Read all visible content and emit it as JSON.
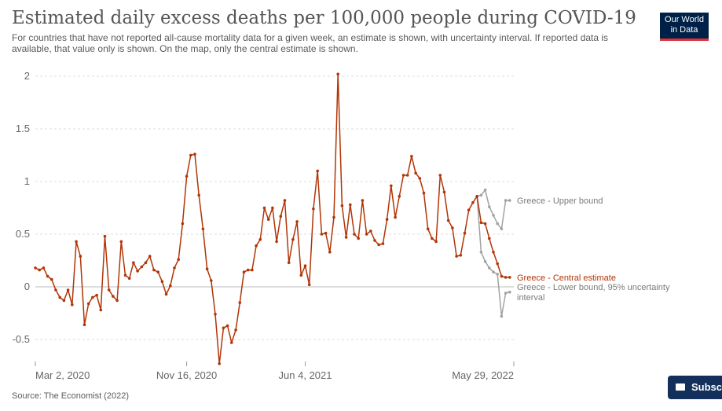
{
  "header": {
    "title": "Estimated daily excess deaths per 100,000 people during COVID-19",
    "subtitle": "For countries that have not reported all-cause mortality data for a given week, an estimate is shown, with uncertainty interval. If reported data is available, that value only is shown. On the map, only the central estimate is shown.",
    "logo_line1": "Our World",
    "logo_line2": "in Data"
  },
  "footer": {
    "source": "Source: The Economist (2022)",
    "subscribe_label": "Subsc"
  },
  "colors": {
    "central": "#b13507",
    "bound": "#a2a2a2",
    "grid": "#dddddd",
    "zero_line": "#bbbbbb"
  },
  "chart_data": {
    "type": "line",
    "title": "Estimated daily excess deaths per 100,000 people during COVID-19",
    "xlabel": "",
    "ylabel": "",
    "ylim": [
      -0.75,
      2.05
    ],
    "grid": true,
    "y_ticks": [
      {
        "value": 2,
        "label": "2"
      },
      {
        "value": 1.5,
        "label": "1.5"
      },
      {
        "value": 1,
        "label": "1"
      },
      {
        "value": 0.5,
        "label": "0.5"
      },
      {
        "value": 0,
        "label": "0"
      },
      {
        "value": -0.5,
        "label": "-0.5"
      }
    ],
    "x_ticks": [
      {
        "week": 0,
        "label": "Mar 2, 2020"
      },
      {
        "week": 37,
        "label": "Nov 16, 2020"
      },
      {
        "week": 66,
        "label": "Jun 4, 2021"
      },
      {
        "week": 117,
        "label": "May 29, 2022"
      }
    ],
    "x_range_weeks": [
      0,
      117
    ],
    "series": [
      {
        "name": "Greece - Central estimate",
        "x": [
          0,
          1,
          2,
          3,
          4,
          5,
          6,
          7,
          8,
          9,
          10,
          11,
          12,
          13,
          14,
          15,
          16,
          17,
          18,
          19,
          20,
          21,
          22,
          23,
          24,
          25,
          26,
          27,
          28,
          29,
          30,
          31,
          32,
          33,
          34,
          35,
          36,
          37,
          38,
          39,
          40,
          41,
          42,
          43,
          44,
          45,
          46,
          47,
          48,
          49,
          50,
          51,
          52,
          53,
          54,
          55,
          56,
          57,
          58,
          59,
          60,
          61,
          62,
          63,
          64,
          65,
          66,
          67,
          68,
          69,
          70,
          71,
          72,
          73,
          74,
          75,
          76,
          77,
          78,
          79,
          80,
          81,
          82,
          83,
          84,
          85,
          86,
          87,
          88,
          89,
          90,
          91,
          92,
          93,
          94,
          95,
          96,
          97,
          98,
          99,
          100,
          101,
          102,
          103,
          104,
          105,
          106,
          107,
          108,
          109,
          110,
          111,
          112,
          113,
          114,
          115,
          116
        ],
        "values": [
          0.18,
          0.16,
          0.18,
          0.1,
          0.07,
          -0.03,
          -0.1,
          -0.13,
          -0.03,
          -0.17,
          0.43,
          0.29,
          -0.36,
          -0.16,
          -0.1,
          -0.08,
          -0.22,
          0.48,
          -0.03,
          -0.09,
          -0.13,
          0.43,
          0.11,
          0.08,
          0.23,
          0.15,
          0.19,
          0.23,
          0.29,
          0.16,
          0.14,
          0.05,
          -0.07,
          0.01,
          0.18,
          0.26,
          0.6,
          1.05,
          1.25,
          1.26,
          0.87,
          0.55,
          0.17,
          0.06,
          -0.26,
          -0.73,
          -0.39,
          -0.37,
          -0.53,
          -0.41,
          -0.15,
          0.14,
          0.16,
          0.16,
          0.39,
          0.45,
          0.75,
          0.64,
          0.75,
          0.43,
          0.67,
          0.82,
          0.23,
          0.45,
          0.62,
          0.11,
          0.2,
          0.02,
          0.74,
          1.1,
          0.5,
          0.51,
          0.33,
          0.66,
          2.02,
          0.77,
          0.47,
          0.78,
          0.5,
          0.46,
          0.82,
          0.5,
          0.53,
          0.44,
          0.4,
          0.41,
          0.64,
          0.96,
          0.66,
          0.86,
          1.06,
          1.06,
          1.24,
          1.08,
          1.03,
          0.89,
          0.55,
          0.46,
          0.43,
          1.06,
          0.9,
          0.63,
          0.56,
          0.29,
          0.3,
          0.51,
          0.73,
          0.8,
          0.86,
          0.61,
          0.6,
          0.46,
          0.33,
          0.22,
          0.1,
          0.09,
          0.09
        ]
      },
      {
        "name": "Greece - Upper bound",
        "x": [
          108,
          109,
          110,
          111,
          112,
          113,
          114,
          115,
          116
        ],
        "values": [
          0.86,
          0.87,
          0.92,
          0.76,
          0.68,
          0.6,
          0.55,
          0.82,
          0.82
        ]
      },
      {
        "name": "Greece - Lower bound, 95% uncertainty interval",
        "x": [
          108,
          109,
          110,
          111,
          112,
          113,
          114,
          115,
          116
        ],
        "values": [
          0.86,
          0.33,
          0.24,
          0.18,
          0.14,
          0.12,
          -0.28,
          -0.06,
          -0.05
        ]
      }
    ],
    "annotations": [
      {
        "label": "Greece - Upper bound",
        "series": 1
      },
      {
        "label": "Greece - Central estimate",
        "series": 0
      },
      {
        "label_line1": "Greece - Lower bound, 95% uncertainty",
        "label_line2": "interval",
        "series": 2
      }
    ]
  }
}
